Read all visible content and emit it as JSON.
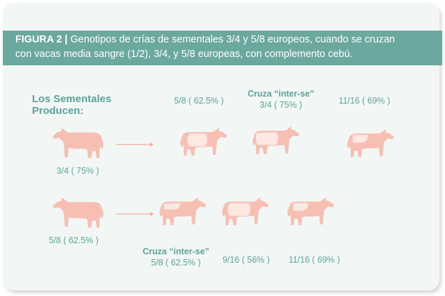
{
  "figure": {
    "label": "FIGURA 2 |",
    "caption_line1": " Genotipos de crías de sementales 3/4 y 5/8 europeos, cuando se cruzan",
    "caption_line2": "con vacas media sangre (1/2), 3/4, y 5/8 europeas, con complemento cebú."
  },
  "intro": {
    "line1": "Los Sementales",
    "line2": "Producen:"
  },
  "row1": {
    "sire_label": "3/4 ( 75% )",
    "offspring": [
      {
        "label": "5/8 ( 62.5% )"
      },
      {
        "label_bold": "Cruza “inter-se”",
        "label": "3/4 ( 75% )"
      },
      {
        "label": "11/16 ( 69% )"
      }
    ]
  },
  "row2": {
    "sire_label": "5/8 ( 62.5% )",
    "offspring": [
      {
        "label_bold": "Cruza “inter-se”",
        "label": "5/8 ( 62.5% )"
      },
      {
        "label": "9/16 ( 56% )"
      },
      {
        "label": "11/16 ( 69% )"
      }
    ]
  },
  "colors": {
    "header_bg": "#6ba89e",
    "text": "#5ba398",
    "cow_pink": "#f7bfb2",
    "cow_light": "#fde8e2",
    "card_bg": "#f2f7f6"
  }
}
